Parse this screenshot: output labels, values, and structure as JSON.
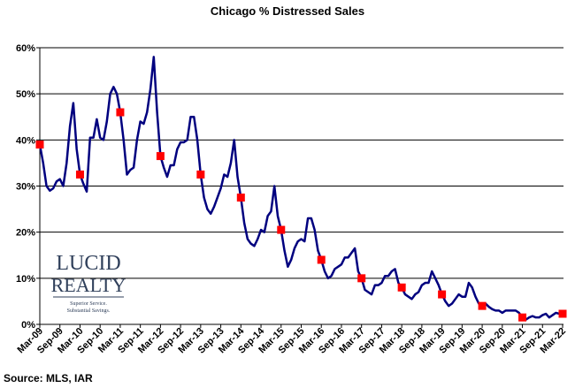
{
  "chart_data": {
    "type": "line",
    "title": "Chicago % Distressed Sales",
    "source": "Source: MLS, IAR",
    "logo": {
      "line1": "LUCID",
      "line2": "REALTY",
      "tagline1": "Superior Service.",
      "tagline2": "Substantial Savings."
    },
    "categories": [
      "Mar-09",
      null,
      null,
      null,
      null,
      null,
      "Sep-09",
      null,
      null,
      null,
      null,
      null,
      "Mar-10",
      null,
      null,
      null,
      null,
      null,
      "Sep-10",
      null,
      null,
      null,
      null,
      null,
      "Mar-11",
      null,
      null,
      null,
      null,
      null,
      "Sep-11",
      null,
      null,
      null,
      null,
      null,
      "Mar-12",
      null,
      null,
      null,
      null,
      null,
      "Sep-12",
      null,
      null,
      null,
      null,
      null,
      "Mar-13",
      null,
      null,
      null,
      null,
      null,
      "Sep-13",
      null,
      null,
      null,
      null,
      null,
      "Mar-14",
      null,
      null,
      null,
      null,
      null,
      "Sep-14",
      null,
      null,
      null,
      null,
      null,
      "Mar-15",
      null,
      null,
      null,
      null,
      null,
      "Sep-15",
      null,
      null,
      null,
      null,
      null,
      "Mar-16",
      null,
      null,
      null,
      null,
      null,
      "Sep-16",
      null,
      null,
      null,
      null,
      null,
      "Mar-17",
      null,
      null,
      null,
      null,
      null,
      "Sep-17",
      null,
      null,
      null,
      null,
      null,
      "Mar-18",
      null,
      null,
      null,
      null,
      null,
      "Sep-18",
      null,
      null,
      null,
      null,
      null,
      "Mar-19",
      null,
      null,
      null,
      null,
      null,
      "Sep-19",
      null,
      null,
      null,
      null,
      null,
      "Mar-20",
      null,
      null,
      null,
      null,
      null,
      "Sep-20",
      null,
      null,
      null,
      null,
      null,
      "Mar-21",
      null,
      null,
      null,
      null,
      null,
      "Sep-21",
      null,
      null,
      null,
      null,
      null,
      "Mar-22"
    ],
    "series": [
      {
        "color": "#00007f",
        "values": [
          39,
          35,
          30,
          29,
          29.5,
          31,
          31.5,
          30,
          35,
          43,
          48,
          38,
          32.5,
          30.5,
          28.8,
          40.5,
          40.5,
          44.5,
          40.5,
          40,
          44,
          50,
          51.5,
          50,
          46,
          40,
          32.5,
          33.5,
          34,
          40,
          44,
          43.5,
          46,
          51,
          58,
          46,
          36.5,
          34,
          32,
          34.5,
          34.5,
          38,
          39.5,
          39.5,
          40,
          45,
          45,
          40,
          32.5,
          27.5,
          25,
          24,
          25.5,
          27.5,
          29.5,
          32.5,
          32,
          35,
          40,
          32,
          27.5,
          22,
          18.5,
          17.5,
          17,
          18.5,
          20.5,
          20,
          23.5,
          24.5,
          30,
          23.5,
          20.5,
          16,
          12.5,
          14,
          16.5,
          18,
          18.5,
          18,
          23,
          23,
          20.5,
          16,
          14,
          11.5,
          10,
          10.5,
          12,
          12.5,
          13,
          14.5,
          14.5,
          15.5,
          16.5,
          11.5,
          10,
          7.5,
          7,
          6.5,
          8.5,
          8.5,
          9,
          10.5,
          10.5,
          11.5,
          12,
          9,
          8,
          6.5,
          6,
          5.5,
          6.5,
          7,
          8.5,
          9,
          9,
          11.5,
          10,
          8.5,
          6.5,
          5,
          4,
          4.5,
          5.5,
          6.5,
          6,
          6,
          9,
          8,
          6,
          4.5,
          4,
          4.5,
          3.8,
          3.3,
          3,
          3,
          2.5,
          3,
          3,
          3,
          3,
          2.5,
          1.5,
          1,
          1.5,
          1.8,
          1.5,
          1.5,
          2,
          2.3,
          1.5,
          2,
          2.5,
          2.3,
          2.3
        ]
      }
    ],
    "marker_every": 12,
    "marker_color": "#ff0000",
    "ylim": [
      0,
      60
    ],
    "yticks": [
      {
        "value": 0,
        "label": "0%"
      },
      {
        "value": 10,
        "label": "10%"
      },
      {
        "value": 20,
        "label": "20%"
      },
      {
        "value": 30,
        "label": "30%"
      },
      {
        "value": 40,
        "label": "40%"
      },
      {
        "value": 50,
        "label": "50%"
      },
      {
        "value": 60,
        "label": "60%"
      }
    ],
    "grid": true
  }
}
